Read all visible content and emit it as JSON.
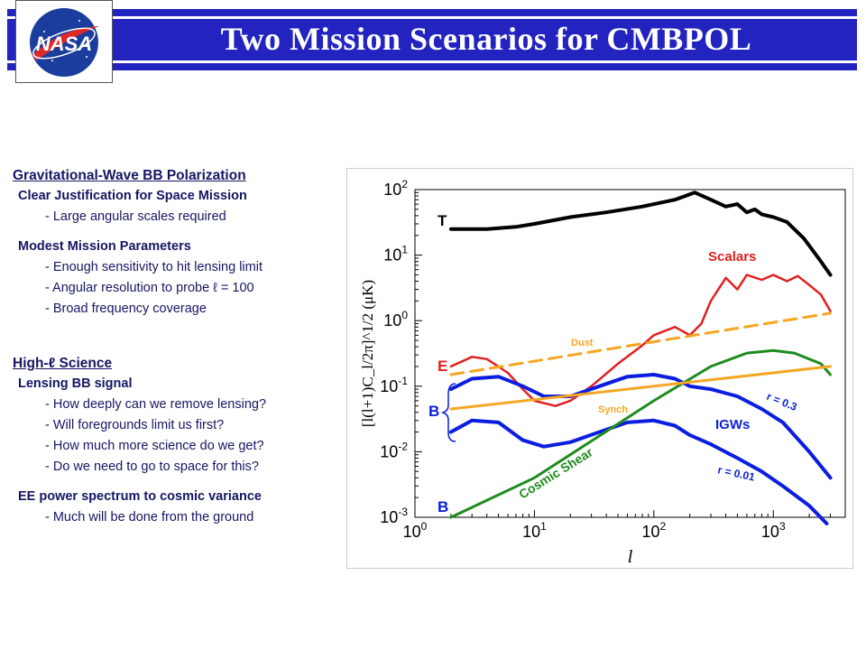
{
  "slide": {
    "title": "Two Mission Scenarios for CMBPOL",
    "logo_text": "NASA"
  },
  "left_panel": {
    "section1": {
      "heading": "Gravitational-Wave  BB Polarization",
      "sub1": "Clear Justification for Space Mission",
      "sub1_items": [
        "- Large angular scales required"
      ],
      "sub2": "Modest Mission Parameters",
      "sub2_items": [
        "- Enough sensitivity to hit lensing limit",
        "- Angular resolution to probe ℓ = 100",
        "- Broad frequency coverage"
      ]
    },
    "section2": {
      "heading": "High-ℓ Science",
      "sub1": "Lensing BB signal",
      "sub1_items": [
        "- How deeply can we remove lensing?",
        "- Will foregrounds limit us first?",
        "- How much more science do we get?",
        "- Do we need to go to space for this?"
      ],
      "sub2": "EE power spectrum to cosmic variance",
      "sub2_items": [
        "- Much will be done from the ground"
      ]
    }
  },
  "chart_data": {
    "type": "line",
    "xlabel": "l",
    "ylabel": "[l(l+1)C_l/2π]^1/2 (μK)",
    "x_scale": "log",
    "y_scale": "log",
    "xlim": [
      1,
      4000
    ],
    "ylim": [
      0.001,
      100
    ],
    "x_ticks": [
      "10^0",
      "10^1",
      "10^2",
      "10^3"
    ],
    "y_ticks": [
      "10^-3",
      "10^-2",
      "10^-1",
      "10^0",
      "10^1",
      "10^2"
    ],
    "colors": {
      "T": "#000000",
      "E": "#e02020",
      "B": "#0a1ee0",
      "dust": "#f5a623",
      "synch": "#f5a623",
      "lensing": "#1e8c1e"
    },
    "labels": {
      "T": "T",
      "E": "E",
      "B_top": "B",
      "B_bottom": "B",
      "scalars": "Scalars",
      "dust": "Dust",
      "synch": "Synch",
      "igws": "IGWs",
      "r_high": "r = 0.3",
      "r_low": "r = 0.01",
      "cosmic_shear": "Cosmic Shear"
    },
    "series": [
      {
        "name": "T",
        "x": [
          2,
          4,
          7,
          10,
          20,
          40,
          80,
          150,
          220,
          300,
          400,
          500,
          600,
          700,
          800,
          1000,
          1300,
          1800,
          2500,
          3000
        ],
        "y": [
          25,
          25,
          27,
          30,
          38,
          45,
          55,
          70,
          90,
          70,
          55,
          60,
          45,
          50,
          42,
          38,
          32,
          18,
          8,
          5
        ]
      },
      {
        "name": "E",
        "x": [
          2,
          3,
          4,
          6,
          8,
          10,
          15,
          20,
          30,
          50,
          80,
          100,
          150,
          200,
          250,
          300,
          400,
          500,
          600,
          800,
          1000,
          1300,
          1600,
          2000,
          2500,
          3000
        ],
        "y": [
          0.2,
          0.28,
          0.26,
          0.16,
          0.09,
          0.06,
          0.05,
          0.06,
          0.1,
          0.22,
          0.42,
          0.6,
          0.8,
          0.6,
          0.9,
          2.0,
          4.5,
          3.0,
          5.0,
          4.2,
          5.0,
          4.0,
          4.8,
          3.5,
          2.5,
          1.4
        ]
      },
      {
        "name": "B r = 0.3",
        "x": [
          2,
          3,
          5,
          8,
          12,
          20,
          35,
          60,
          100,
          150,
          200,
          300,
          500,
          800,
          1200,
          2000,
          3000
        ],
        "y": [
          0.09,
          0.13,
          0.14,
          0.1,
          0.07,
          0.07,
          0.1,
          0.14,
          0.15,
          0.13,
          0.1,
          0.09,
          0.07,
          0.045,
          0.028,
          0.01,
          0.004
        ]
      },
      {
        "name": "B r = 0.01",
        "x": [
          2,
          3,
          5,
          8,
          12,
          20,
          35,
          60,
          100,
          150,
          200,
          300,
          500,
          800,
          1200,
          2000,
          2800
        ],
        "y": [
          0.02,
          0.03,
          0.028,
          0.015,
          0.012,
          0.014,
          0.02,
          0.028,
          0.03,
          0.025,
          0.018,
          0.013,
          0.008,
          0.005,
          0.003,
          0.0015,
          0.0008
        ]
      },
      {
        "name": "Cosmic Shear",
        "x": [
          2,
          10,
          100,
          300,
          600,
          1000,
          1500,
          2500,
          3000
        ],
        "y": [
          0.001,
          0.004,
          0.06,
          0.2,
          0.32,
          0.35,
          0.32,
          0.22,
          0.15
        ]
      },
      {
        "name": "Dust",
        "x": [
          2,
          3000
        ],
        "y": [
          0.15,
          1.3
        ]
      },
      {
        "name": "Synch",
        "x": [
          2,
          3000
        ],
        "y": [
          0.045,
          0.2
        ]
      }
    ]
  }
}
